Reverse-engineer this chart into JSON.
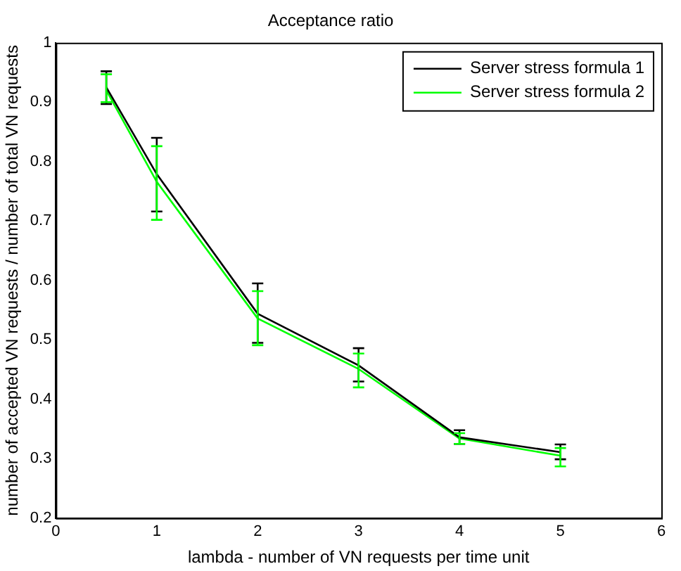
{
  "chart_data": {
    "type": "line",
    "title": "Acceptance ratio",
    "xlabel": "lambda - number of VN requests per time unit",
    "ylabel": "number of accepted VN requests / number of total VN requests",
    "x": [
      0.5,
      1,
      2,
      3,
      4,
      5
    ],
    "series": [
      {
        "name": "Server stress formula 1",
        "color": "#000000",
        "values": [
          0.925,
          0.779,
          0.544,
          0.457,
          0.336,
          0.311
        ],
        "errors": [
          [
            0.897,
            0.952
          ],
          [
            0.716,
            0.84
          ],
          [
            0.495,
            0.595
          ],
          [
            0.43,
            0.486
          ],
          [
            0.325,
            0.348
          ],
          [
            0.299,
            0.324
          ]
        ]
      },
      {
        "name": "Server stress formula 2",
        "color": "#00ff00",
        "values": [
          0.92,
          0.766,
          0.536,
          0.451,
          0.334,
          0.305
        ],
        "errors": [
          [
            0.9,
            0.947
          ],
          [
            0.702,
            0.826
          ],
          [
            0.491,
            0.582
          ],
          [
            0.42,
            0.477
          ],
          [
            0.325,
            0.343
          ],
          [
            0.287,
            0.318
          ]
        ]
      }
    ],
    "xlim": [
      0,
      6
    ],
    "xticks": [
      0,
      1,
      2,
      3,
      4,
      5,
      6
    ],
    "ylim": [
      0.2,
      1
    ],
    "yticks": [
      0.2,
      0.3,
      0.4,
      0.5,
      0.6,
      0.7,
      0.8,
      0.9,
      1
    ],
    "grid": false,
    "legend": "top right",
    "marker": "none",
    "line_style": "solid"
  }
}
